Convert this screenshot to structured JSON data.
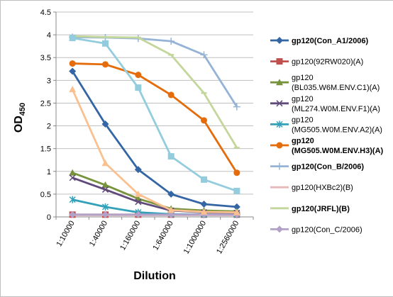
{
  "chart_data": {
    "type": "line",
    "xlabel": "Dilution",
    "ylabel": "OD",
    "ylabel_sub": "450",
    "ylim": [
      0,
      4.5
    ],
    "ytick_labels": [
      "0",
      "0.5",
      "1",
      "1.5",
      "2",
      "2.5",
      "3",
      "3.5",
      "4",
      "4.5"
    ],
    "categories": [
      "1:10000",
      "1:40000",
      "1:160000",
      "1:640000",
      "1:1000000",
      "1:2560000"
    ],
    "grid": "horizontal",
    "legend_position": "right",
    "series": [
      {
        "name": "gp120(Con_A1/2006)",
        "color": "#3465a4",
        "marker": "diamond",
        "bold": true,
        "values": [
          3.2,
          2.04,
          1.04,
          0.5,
          0.28,
          0.22
        ]
      },
      {
        "name": "gp120(92RW020)(A)",
        "color": "#c0504d",
        "marker": "square",
        "bold": false,
        "values": [
          0.05,
          0.05,
          0.05,
          0.05,
          0.05,
          0.05
        ]
      },
      {
        "name": "gp120(BL035.W6M.ENV.C1)(A)",
        "color": "#77933c",
        "marker": "triangle",
        "bold": false,
        "values": [
          0.97,
          0.7,
          0.4,
          0.18,
          0.14,
          0.12
        ]
      },
      {
        "name": "gp120(ML274.W0M.ENV.F1)(A)",
        "color": "#604a7b",
        "marker": "x",
        "bold": false,
        "values": [
          0.86,
          0.6,
          0.33,
          0.14,
          0.1,
          0.09
        ]
      },
      {
        "name": "gp120(MG505.W0M.ENV.A2)(A)",
        "color": "#31a0b8",
        "marker": "star",
        "bold": false,
        "values": [
          0.38,
          0.22,
          0.1,
          0.06,
          0.05,
          0.05
        ]
      },
      {
        "name": "gp120(MG505.W0M.ENV.H3)(A)",
        "color": "#e46c0a",
        "marker": "circle",
        "bold": true,
        "values": [
          3.37,
          3.35,
          3.12,
          2.68,
          2.12,
          0.97
        ]
      },
      {
        "name": "gp120(Con_B/2006)",
        "color": "#95b3d7",
        "marker": "plus",
        "bold": true,
        "values": [
          3.95,
          3.94,
          3.92,
          3.86,
          3.56,
          2.42
        ]
      },
      {
        "name": "gp120(HXBc2)(B)",
        "color": "#e6b9b8",
        "marker": "dash",
        "bold": false,
        "values": [
          0.04,
          0.04,
          0.04,
          0.04,
          0.04,
          0.04
        ]
      },
      {
        "name": "gp120(JRFL)(B)",
        "color": "#c3d69b",
        "marker": "dash",
        "bold": true,
        "values": [
          3.97,
          3.95,
          3.94,
          3.56,
          2.72,
          1.52
        ]
      },
      {
        "name": "gp120(Con_C/2006)",
        "color": "#b3a2c7",
        "marker": "diamond",
        "bold": false,
        "values": [
          0.05,
          0.05,
          0.05,
          0.05,
          0.05,
          0.05
        ]
      },
      {
        "name": "",
        "color": "#fac090",
        "marker": "triangle",
        "bold": false,
        "values": [
          2.8,
          1.18,
          0.5,
          0.15,
          0.11,
          0.1
        ]
      },
      {
        "name": "",
        "color": "#93cddd",
        "marker": "square",
        "bold": false,
        "values": [
          3.93,
          3.81,
          2.84,
          1.33,
          0.82,
          0.57
        ]
      }
    ]
  }
}
